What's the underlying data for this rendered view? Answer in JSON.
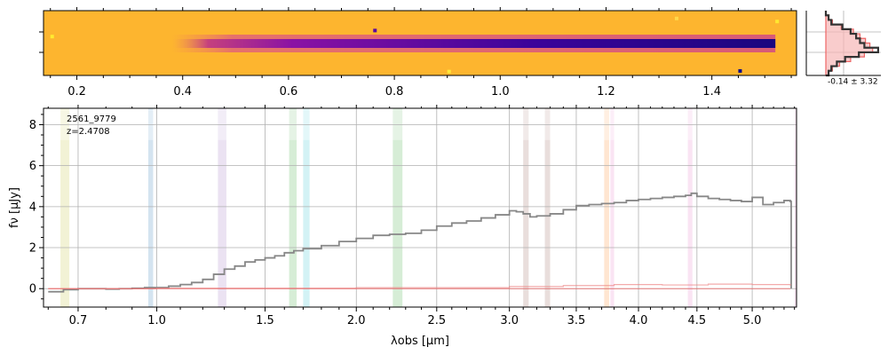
{
  "chart_data": [
    {
      "type": "heatmap",
      "panel": "2d-spectrum",
      "colormap": "plasma (inverted)",
      "x_tick_labels": [
        "0.2",
        "0.4",
        "0.6",
        "0.8",
        "1.0",
        "1.2",
        "1.4"
      ],
      "x_ticks": [
        0.2,
        0.4,
        0.6,
        0.8,
        1.0,
        1.2,
        1.4
      ],
      "trace_start_x": 0.38,
      "trace_end_x": 1.52
    },
    {
      "type": "line",
      "panel": "profile",
      "annotation": "-0.14 ± 3.32",
      "series": [
        {
          "name": "",
          "color": "#333333",
          "values": [
            0,
            0.05,
            0.1,
            0.3,
            0.45,
            0.55,
            0.62,
            0.7,
            0.95,
            0.6,
            0.35,
            0.2,
            0.1,
            0.05,
            0
          ]
        },
        {
          "name": "",
          "color": "#ee6666",
          "values": [
            0,
            0.05,
            0.12,
            0.28,
            0.5,
            0.62,
            0.72,
            0.8,
            0.85,
            0.7,
            0.45,
            0.25,
            0.12,
            0.05,
            0
          ]
        }
      ]
    },
    {
      "type": "line",
      "panel": "1d-spectrum",
      "xscale": "sqrt",
      "xlim": [
        0.585,
        5.42
      ],
      "ylim": [
        -0.9,
        8.8
      ],
      "xlabel": "λobs [μm]",
      "ylabel": "fν [μJy]",
      "grid": true,
      "x_ticks": [
        0.7,
        1.0,
        1.5,
        2.0,
        2.5,
        3.0,
        3.5,
        4.0,
        4.5,
        5.0
      ],
      "x_tick_labels": [
        "0.7",
        "1.0",
        "1.5",
        "2.0",
        "2.5",
        "3.0",
        "3.5",
        "4.0",
        "4.5",
        "5.0"
      ],
      "y_ticks": [
        0,
        2,
        4,
        6,
        8
      ],
      "y_tick_labels": [
        "0",
        "2",
        "4",
        "6",
        "8"
      ],
      "label_id": "2561_9779",
      "label_z": "z=2.4708",
      "bands": [
        {
          "x0": 0.64,
          "x1": 0.67,
          "color": "#bcbd22"
        },
        {
          "x0": 0.965,
          "x1": 0.985,
          "color": "#1f77b4"
        },
        {
          "x0": 1.27,
          "x1": 1.31,
          "color": "#9467bd"
        },
        {
          "x0": 1.625,
          "x1": 1.665,
          "color": "#2ca02c"
        },
        {
          "x0": 1.7,
          "x1": 1.735,
          "color": "#17becf"
        },
        {
          "x0": 2.22,
          "x1": 2.28,
          "color": "#2ca02c"
        },
        {
          "x0": 3.1,
          "x1": 3.14,
          "color": "#8c564b"
        },
        {
          "x0": 3.26,
          "x1": 3.3,
          "color": "#8c564b"
        },
        {
          "x0": 3.72,
          "x1": 3.76,
          "color": "#ff7f0e"
        },
        {
          "x0": 3.77,
          "x1": 3.8,
          "color": "#e377c2"
        },
        {
          "x0": 4.42,
          "x1": 4.46,
          "color": "#e377c2"
        },
        {
          "x0": 5.4,
          "x1": 5.42,
          "color": "#e377c2"
        }
      ],
      "series": [
        {
          "name": "",
          "color": "#888888",
          "x": [
            0.6,
            0.65,
            0.7,
            0.75,
            0.8,
            0.85,
            0.9,
            0.95,
            1.0,
            1.05,
            1.1,
            1.15,
            1.2,
            1.25,
            1.3,
            1.35,
            1.4,
            1.45,
            1.5,
            1.55,
            1.6,
            1.65,
            1.7,
            1.8,
            1.9,
            2.0,
            2.1,
            2.2,
            2.3,
            2.4,
            2.5,
            2.6,
            2.7,
            2.8,
            2.9,
            3.0,
            3.05,
            3.1,
            3.15,
            3.2,
            3.3,
            3.4,
            3.5,
            3.6,
            3.7,
            3.8,
            3.9,
            4.0,
            4.1,
            4.2,
            4.3,
            4.4,
            4.45,
            4.5,
            4.6,
            4.7,
            4.8,
            4.9,
            5.0,
            5.1,
            5.2,
            5.3,
            5.36
          ],
          "y": [
            -0.15,
            -0.05,
            0.0,
            0.0,
            -0.02,
            0.0,
            0.02,
            0.05,
            0.05,
            0.12,
            0.2,
            0.3,
            0.45,
            0.7,
            0.95,
            1.1,
            1.3,
            1.4,
            1.5,
            1.6,
            1.75,
            1.85,
            1.95,
            2.1,
            2.3,
            2.45,
            2.6,
            2.65,
            2.7,
            2.85,
            3.05,
            3.2,
            3.3,
            3.45,
            3.6,
            3.8,
            3.75,
            3.65,
            3.5,
            3.55,
            3.65,
            3.85,
            4.05,
            4.1,
            4.15,
            4.2,
            4.3,
            4.35,
            4.4,
            4.45,
            4.5,
            4.55,
            4.65,
            4.5,
            4.4,
            4.35,
            4.3,
            4.25,
            4.45,
            4.1,
            4.2,
            4.3,
            4.25
          ]
        },
        {
          "name": "",
          "color": "#ee8888",
          "x": [
            0.6,
            1.0,
            2.0,
            3.0,
            3.4,
            3.8,
            4.2,
            4.6,
            5.0,
            5.36
          ],
          "y": [
            0.0,
            0.02,
            0.05,
            0.1,
            0.15,
            0.2,
            0.18,
            0.22,
            0.2,
            0.15
          ]
        }
      ]
    }
  ]
}
